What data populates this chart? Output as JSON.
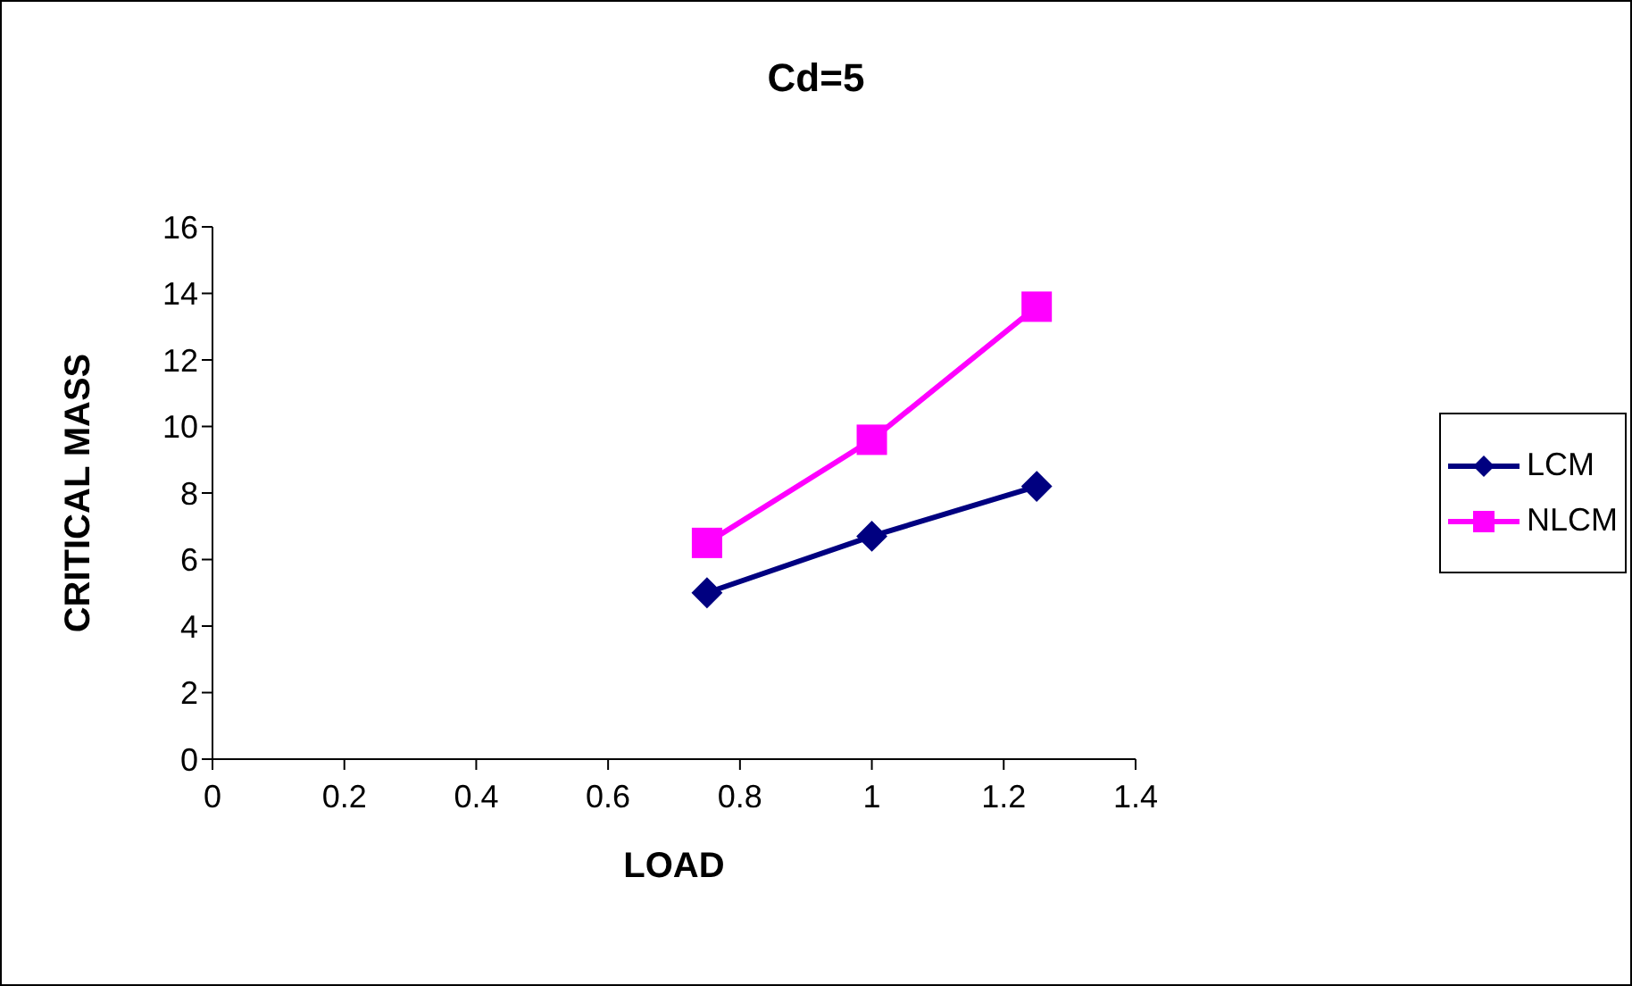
{
  "chart_data": {
    "type": "line",
    "title": "Cd=5",
    "xlabel": "LOAD",
    "ylabel": "CRITICAL MASS",
    "x": [
      0.75,
      1,
      1.25
    ],
    "series": [
      {
        "name": "LCM",
        "color": "#000080",
        "marker": "diamond",
        "values": [
          5.0,
          6.7,
          8.2
        ]
      },
      {
        "name": "NLCM",
        "color": "#ff00ff",
        "marker": "square",
        "values": [
          6.5,
          9.6,
          13.6
        ]
      }
    ],
    "xlim": [
      0,
      1.4
    ],
    "xticks": [
      0,
      0.2,
      0.4,
      0.6,
      0.8,
      1,
      1.2,
      1.4
    ],
    "ylim": [
      0,
      16
    ],
    "yticks": [
      0,
      2,
      4,
      6,
      8,
      10,
      12,
      14,
      16
    ],
    "grid": false,
    "legend": "right"
  }
}
